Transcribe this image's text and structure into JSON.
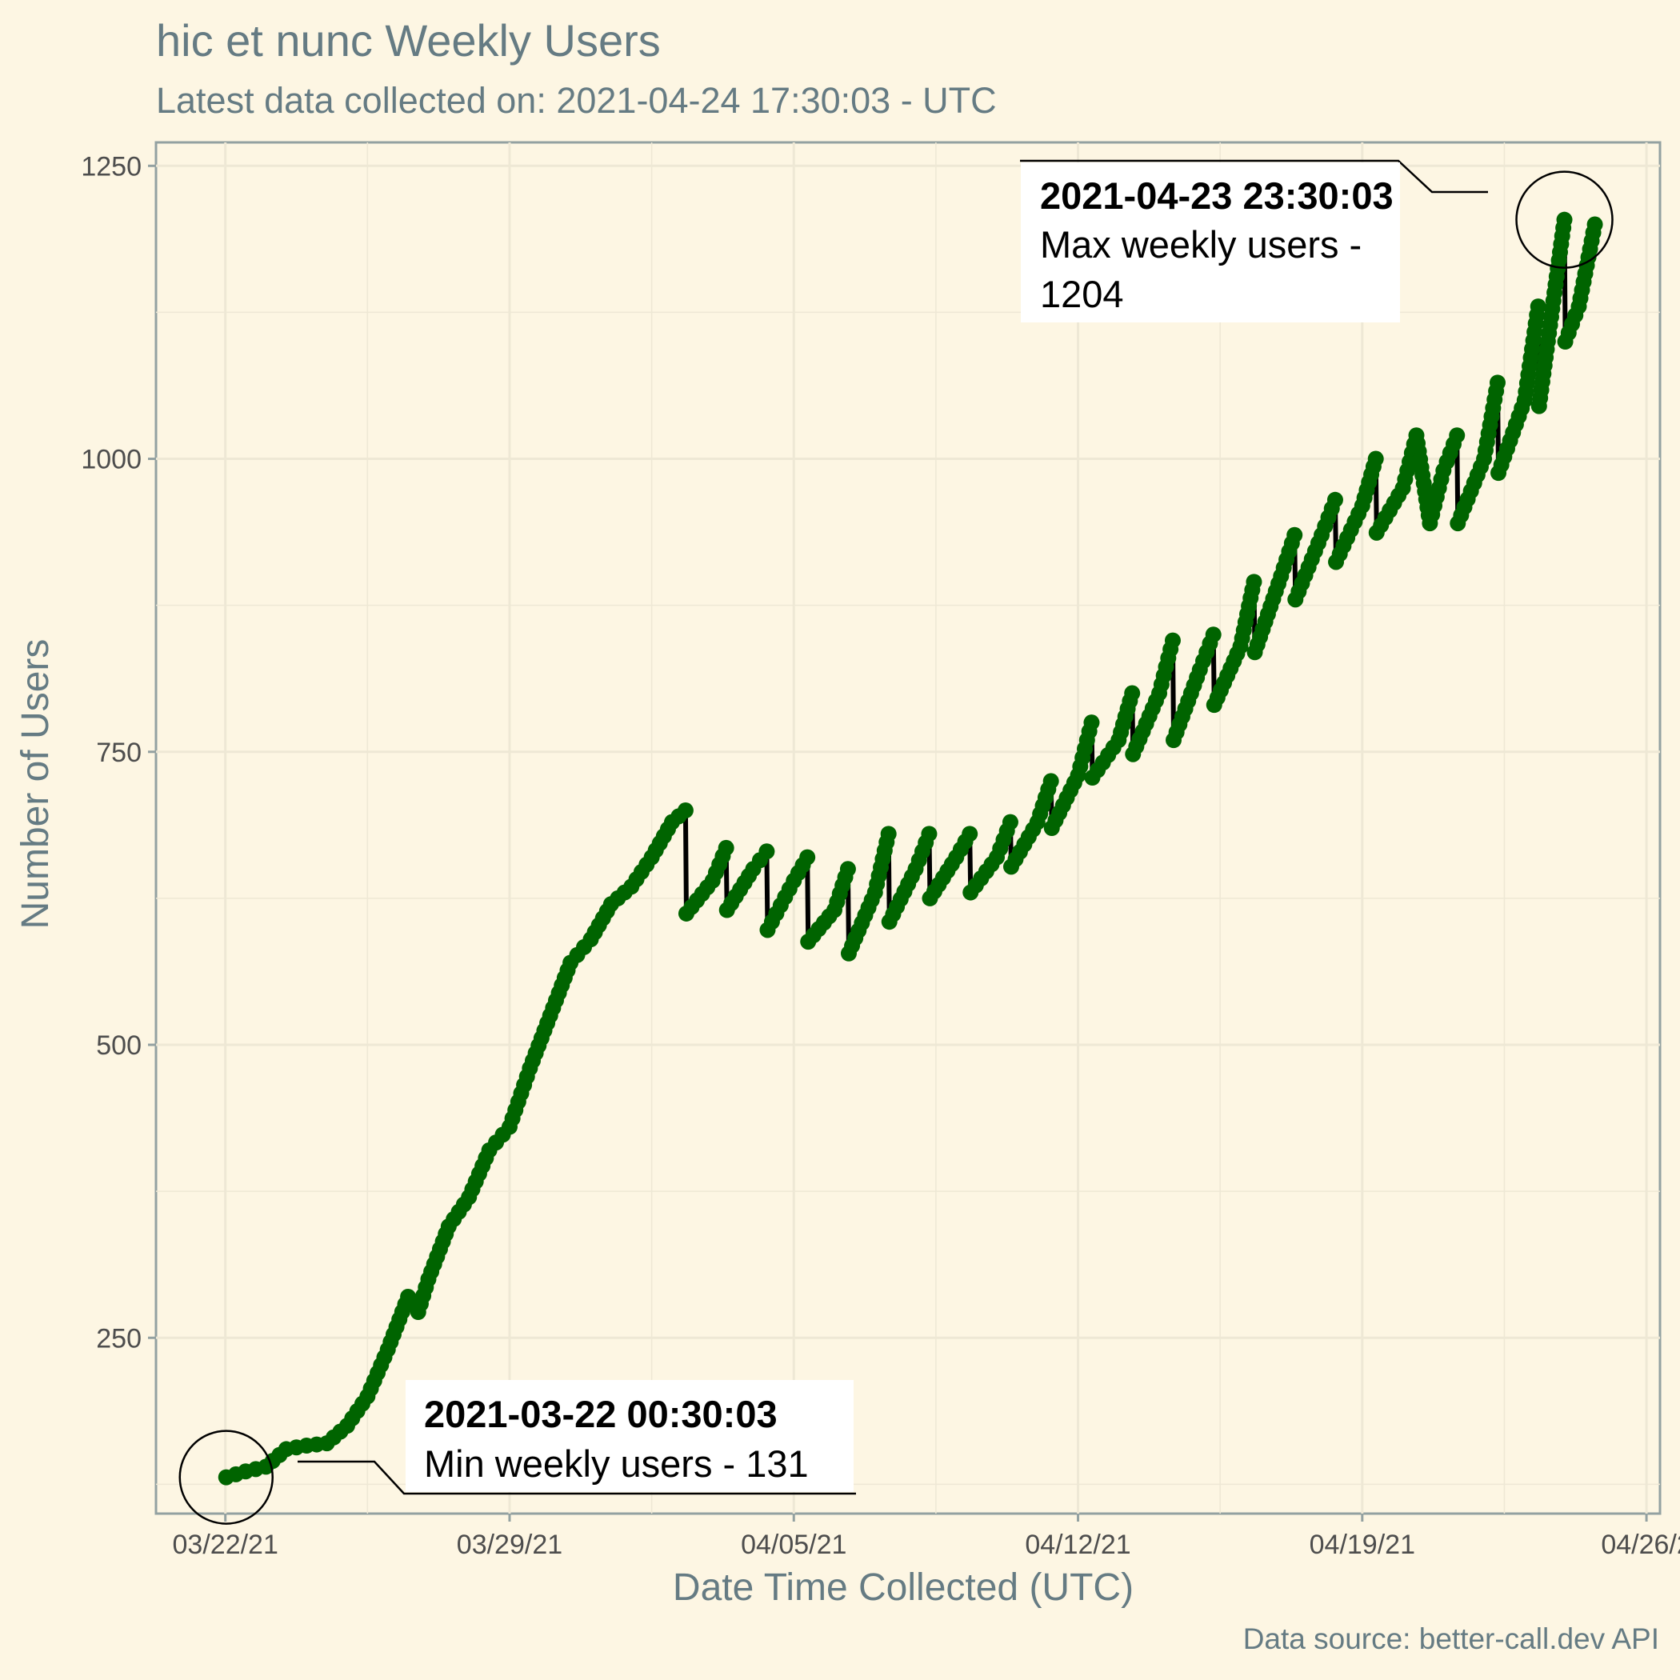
{
  "title": "hic et nunc Weekly Users",
  "subtitle": "Latest data collected on: 2021-04-24 17:30:03  - UTC",
  "caption": "Data source: better-call.dev API",
  "colors": {
    "background": "#fdf6e3",
    "grid": "#eee8d5",
    "axis": "#93a1a1",
    "line": "#000000",
    "points": "#006400",
    "label_box": "#ffffff"
  },
  "chart_data": {
    "type": "line",
    "title": "hic et nunc Weekly Users",
    "subtitle": "Latest data collected on: 2021-04-24 17:30:03  - UTC",
    "xlabel": "Date Time Collected (UTC)",
    "ylabel": "Number of Users",
    "x_ticks": [
      "03/22/21",
      "03/29/21",
      "04/05/21",
      "04/12/21",
      "04/19/21",
      "04/26/2"
    ],
    "y_ticks": [
      250,
      500,
      750,
      1000,
      1250
    ],
    "xlim": [
      "2021-03-20T07:00",
      "2021-04-26T08:00"
    ],
    "ylim": [
      100,
      1270
    ],
    "grid": true,
    "legend": "none",
    "series": [
      {
        "x": [
          "2021-03-22T00:30",
          "2021-03-22T12:00",
          "2021-03-23T00:00",
          "2021-03-23T12:00",
          "2021-03-24T00:00",
          "2021-03-24T12:00",
          "2021-03-25T00:00",
          "2021-03-25T12:00",
          "2021-03-26T00:00",
          "2021-03-26T12:00",
          "2021-03-26T18:00",
          "2021-03-27T00:00",
          "2021-03-27T12:00",
          "2021-03-28T00:00",
          "2021-03-28T12:00",
          "2021-03-29T00:00",
          "2021-03-29T12:00",
          "2021-03-30T00:00",
          "2021-03-30T12:00",
          "2021-03-31T00:00",
          "2021-03-31T12:00",
          "2021-04-01T00:00",
          "2021-04-01T12:00",
          "2021-04-02T00:00",
          "2021-04-02T08:00",
          "2021-04-02T08:30",
          "2021-04-03T00:00",
          "2021-04-03T08:00",
          "2021-04-03T08:30",
          "2021-04-04T00:00",
          "2021-04-04T08:00",
          "2021-04-04T08:30",
          "2021-04-05T00:00",
          "2021-04-05T08:00",
          "2021-04-05T08:30",
          "2021-04-06T00:00",
          "2021-04-06T08:00",
          "2021-04-06T08:30",
          "2021-04-07T00:00",
          "2021-04-07T08:00",
          "2021-04-07T08:30",
          "2021-04-08T00:00",
          "2021-04-08T08:00",
          "2021-04-08T08:30",
          "2021-04-09T00:00",
          "2021-04-09T08:00",
          "2021-04-09T08:30",
          "2021-04-10T00:00",
          "2021-04-10T08:00",
          "2021-04-10T08:30",
          "2021-04-11T00:00",
          "2021-04-11T08:00",
          "2021-04-11T08:30",
          "2021-04-12T00:00",
          "2021-04-12T08:00",
          "2021-04-12T08:30",
          "2021-04-13T00:00",
          "2021-04-13T08:00",
          "2021-04-13T08:30",
          "2021-04-14T00:00",
          "2021-04-14T08:00",
          "2021-04-14T08:30",
          "2021-04-15T00:00",
          "2021-04-15T08:00",
          "2021-04-15T08:30",
          "2021-04-16T00:00",
          "2021-04-16T08:00",
          "2021-04-16T08:30",
          "2021-04-17T00:00",
          "2021-04-17T08:00",
          "2021-04-17T08:30",
          "2021-04-18T00:00",
          "2021-04-18T08:00",
          "2021-04-18T08:30",
          "2021-04-19T00:00",
          "2021-04-19T08:00",
          "2021-04-19T08:30",
          "2021-04-20T00:00",
          "2021-04-20T08:00",
          "2021-04-20T16:00",
          "2021-04-21T00:00",
          "2021-04-21T08:00",
          "2021-04-21T08:30",
          "2021-04-22T00:00",
          "2021-04-22T08:00",
          "2021-04-22T08:30",
          "2021-04-23T00:00",
          "2021-04-23T08:00",
          "2021-04-23T08:30",
          "2021-04-23T23:30",
          "2021-04-24T00:00",
          "2021-04-24T08:00",
          "2021-04-24T17:30"
        ],
        "y": [
          131,
          136,
          140,
          155,
          158,
          160,
          175,
          200,
          240,
          285,
          272,
          300,
          345,
          370,
          410,
          430,
          480,
          525,
          570,
          590,
          620,
          635,
          660,
          690,
          700,
          612,
          640,
          668,
          615,
          650,
          665,
          598,
          640,
          660,
          588,
          615,
          650,
          578,
          630,
          680,
          605,
          650,
          680,
          625,
          660,
          680,
          630,
          660,
          690,
          652,
          690,
          725,
          685,
          730,
          775,
          728,
          760,
          800,
          748,
          800,
          845,
          760,
          820,
          850,
          790,
          840,
          895,
          835,
          900,
          935,
          880,
          935,
          965,
          912,
          960,
          1000,
          937,
          975,
          1020,
          945,
          990,
          1020,
          945,
          1000,
          1065,
          988,
          1050,
          1130,
          1045,
          1204,
          1100,
          1130,
          1200
        ]
      }
    ],
    "annotations": [
      {
        "date": "2021-03-22 00:30:03",
        "text": "Min weekly users - 131",
        "x": "2021-03-22T00:30",
        "y": 131
      },
      {
        "date": "2021-04-23 23:30:03",
        "text": "Max weekly users - 1204",
        "x": "2021-04-23T23:30",
        "y": 1204
      }
    ]
  }
}
